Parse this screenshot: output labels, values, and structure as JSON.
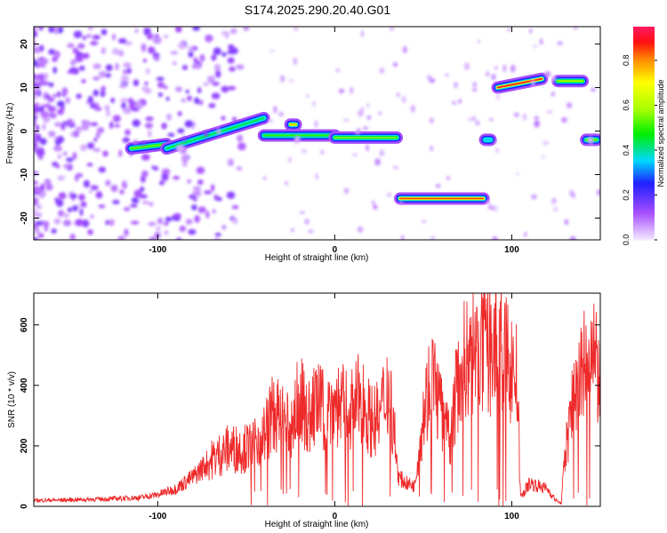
{
  "title": "S174.2025.290.20.40.G01",
  "colors": {
    "snr_line": "#ee2a2a",
    "spectral_low": "#e8dcf7",
    "spectral_peak": "#ff1a66"
  },
  "chart_data": [
    {
      "type": "heatmap",
      "xlabel": "Height of straight line (km)",
      "ylabel": "Frequency (Hz)",
      "xlim": [
        -170,
        150
      ],
      "ylim": [
        -25,
        24
      ],
      "xticks": [
        -100,
        0,
        100
      ],
      "xtick_labels": [
        "-100",
        "0",
        "100"
      ],
      "yticks": [
        -20,
        -10,
        0,
        10,
        20
      ],
      "ytick_labels": [
        "-20",
        "-10",
        "0",
        "10",
        "20"
      ],
      "colorbar": {
        "label": "Normalized spectral amplitude",
        "range": [
          0.0,
          0.95
        ],
        "ticks": [
          0.0,
          0.2,
          0.4,
          0.6,
          0.8
        ],
        "tick_labels": [
          "0.0",
          "0.2",
          "0.4",
          "0.6",
          "0.8"
        ],
        "stops": [
          {
            "v": 0.0,
            "color": "#f2e6ff"
          },
          {
            "v": 0.12,
            "color": "#a64dff"
          },
          {
            "v": 0.25,
            "color": "#2020ff"
          },
          {
            "v": 0.35,
            "color": "#00d8ff"
          },
          {
            "v": 0.47,
            "color": "#00ee00"
          },
          {
            "v": 0.58,
            "color": "#a8ff00"
          },
          {
            "v": 0.7,
            "color": "#ffff00"
          },
          {
            "v": 0.8,
            "color": "#ff8c00"
          },
          {
            "v": 0.88,
            "color": "#ff1010"
          },
          {
            "v": 0.95,
            "color": "#ff1a66"
          }
        ]
      },
      "features": [
        {
          "x": [
            -115,
            -95
          ],
          "y": [
            -4,
            -3
          ],
          "amp": 0.55
        },
        {
          "x": [
            -95,
            -40
          ],
          "y": [
            -4,
            3
          ],
          "amp": 0.45
        },
        {
          "x": [
            -40,
            0
          ],
          "y": [
            -1,
            -1
          ],
          "amp": 0.5
        },
        {
          "x": [
            -25,
            -22
          ],
          "y": [
            1.5,
            1.5
          ],
          "amp": 0.75
        },
        {
          "x": [
            0,
            35
          ],
          "y": [
            -1.5,
            -1.5
          ],
          "amp": 0.55
        },
        {
          "x": [
            37,
            84
          ],
          "y": [
            -15.5,
            -15.5
          ],
          "amp": 0.85
        },
        {
          "x": [
            85,
            88
          ],
          "y": [
            -2,
            -2
          ],
          "amp": 0.35
        },
        {
          "x": [
            92,
            117
          ],
          "y": [
            10,
            12
          ],
          "amp": 0.9
        },
        {
          "x": [
            126,
            140
          ],
          "y": [
            11.5,
            11.5
          ],
          "amp": 0.6
        },
        {
          "x": [
            142,
            148
          ],
          "y": [
            -2,
            -2
          ],
          "amp": 0.55
        }
      ]
    },
    {
      "type": "line",
      "xlabel": "Height of straight line (km)",
      "ylabel": "SNR (10 * v/v)",
      "xlim": [
        -170,
        150
      ],
      "ylim": [
        0,
        705
      ],
      "xticks": [
        -100,
        0,
        100
      ],
      "xtick_labels": [
        "-100",
        "0",
        "100"
      ],
      "yticks": [
        0,
        200,
        400,
        600
      ],
      "ytick_labels": [
        "0",
        "200",
        "400",
        "600"
      ],
      "series": [
        {
          "name": "SNR",
          "x": [
            -170,
            -150,
            -130,
            -110,
            -100,
            -90,
            -80,
            -70,
            -60,
            -50,
            -40,
            -35,
            -30,
            -25,
            -20,
            -15,
            -10,
            -5,
            0,
            5,
            10,
            15,
            20,
            25,
            30,
            33,
            36,
            40,
            45,
            50,
            55,
            60,
            65,
            70,
            75,
            80,
            85,
            90,
            95,
            100,
            103,
            105,
            110,
            120,
            125,
            128,
            130,
            135,
            140,
            145,
            150
          ],
          "values": [
            20,
            22,
            25,
            30,
            40,
            60,
            100,
            160,
            200,
            200,
            250,
            320,
            300,
            260,
            380,
            300,
            360,
            320,
            360,
            340,
            340,
            380,
            300,
            300,
            420,
            300,
            100,
            80,
            70,
            320,
            460,
            330,
            220,
            460,
            520,
            540,
            530,
            560,
            520,
            480,
            440,
            30,
            80,
            60,
            20,
            10,
            180,
            380,
            470,
            500,
            470
          ]
        }
      ]
    }
  ]
}
